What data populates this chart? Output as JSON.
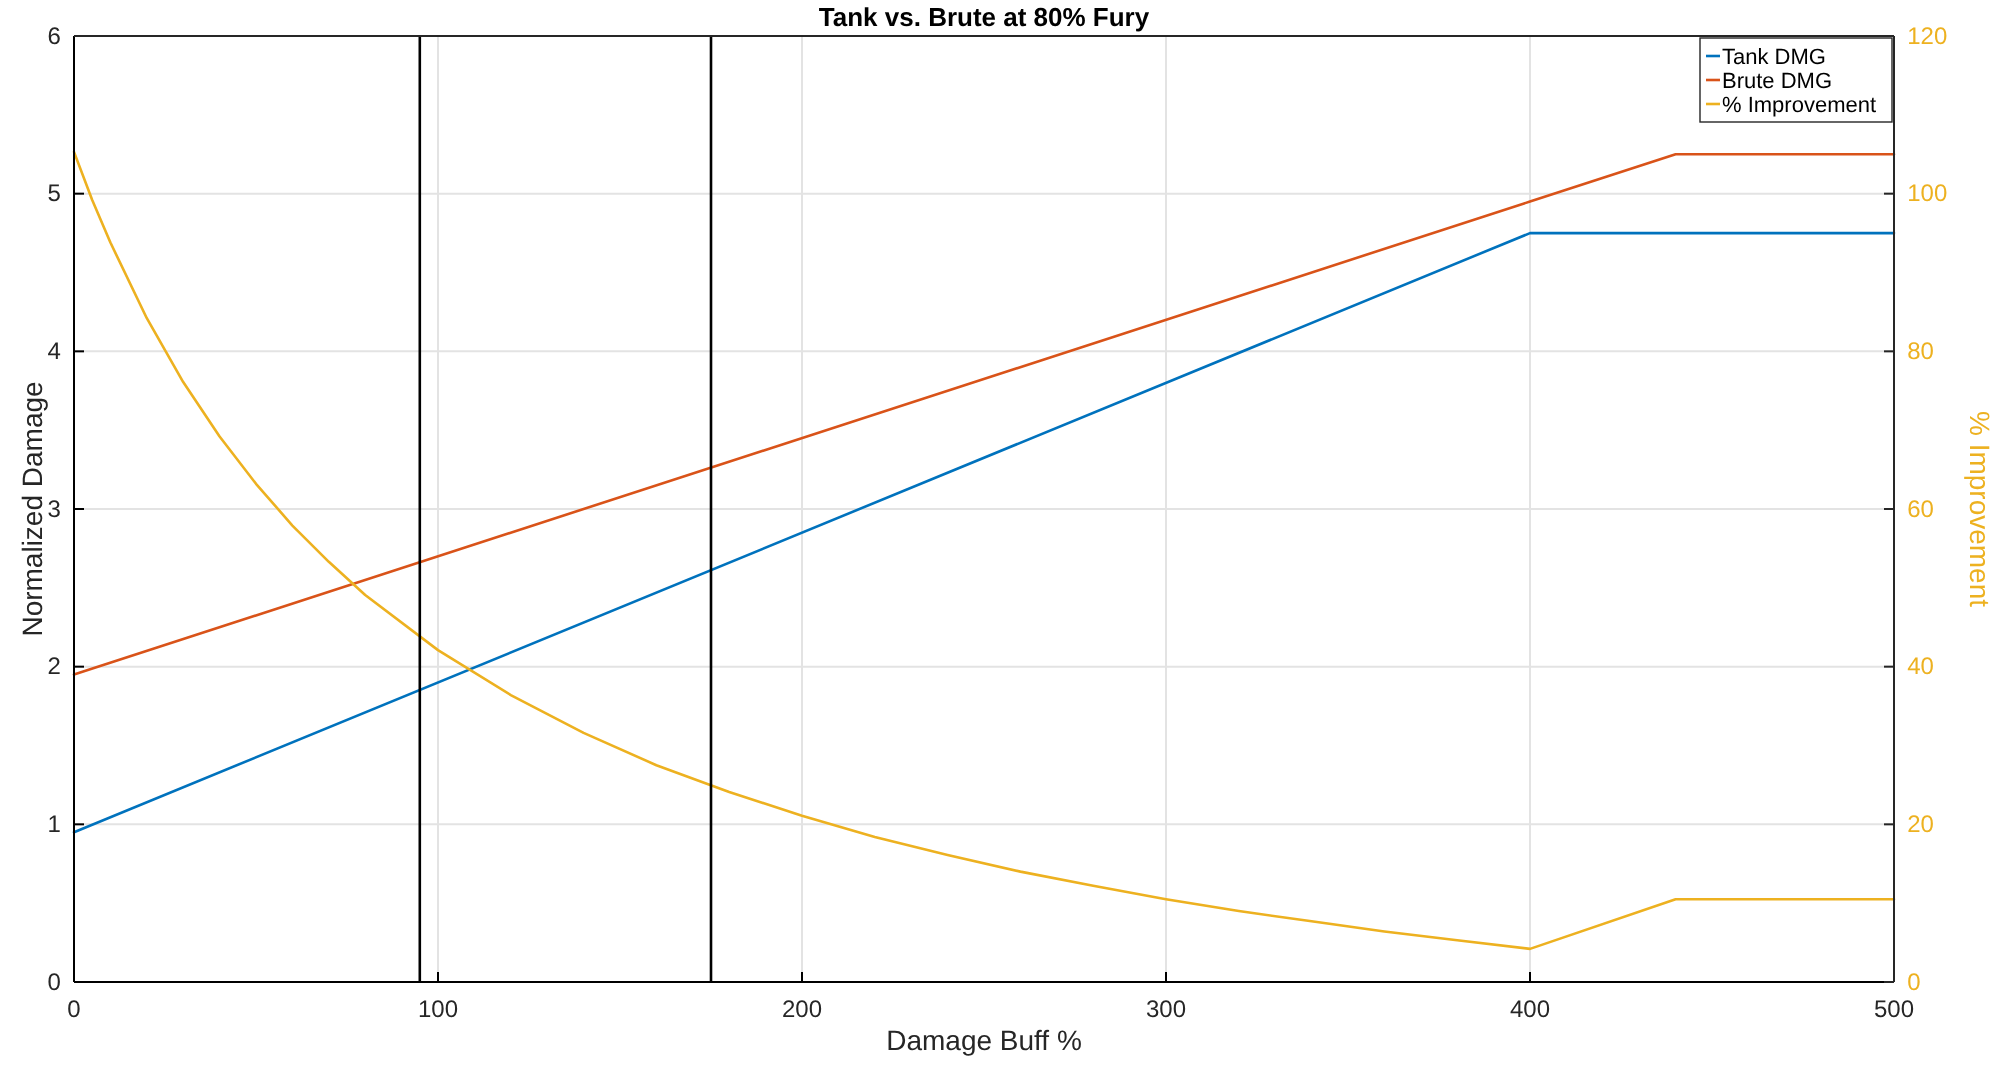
{
  "chart_data": {
    "type": "line",
    "title": "Tank vs. Brute at 80% Fury",
    "xlabel": "Damage Buff %",
    "ylabel": "Normalized Damage",
    "y2label": "% Improvement",
    "xlim": [
      0,
      500
    ],
    "xticks": [
      0,
      100,
      200,
      300,
      400,
      500
    ],
    "ylim": [
      0,
      6
    ],
    "yticks": [
      0,
      1,
      2,
      3,
      4,
      5,
      6
    ],
    "y2lim": [
      0,
      120
    ],
    "y2ticks": [
      0,
      20,
      40,
      60,
      80,
      100,
      120
    ],
    "grid": true,
    "legend": "top right",
    "line_style": "solid",
    "marker": "none",
    "series": [
      {
        "name": "Tank DMG",
        "color": "#0072bd",
        "x": [
          0,
          400,
          440,
          500
        ],
        "values": [
          0.95,
          4.75,
          4.75,
          4.75
        ]
      },
      {
        "name": "Brute DMG",
        "color": "#d95319",
        "x": [
          0,
          400,
          440,
          500
        ],
        "values": [
          1.95,
          4.95,
          5.25,
          5.25
        ]
      },
      {
        "name": "% Improvement",
        "color": "#edb120",
        "axis": "y2",
        "x": [
          0,
          5,
          10,
          20,
          30,
          40,
          50,
          60,
          70,
          80,
          100,
          120,
          140,
          160,
          180,
          200,
          220,
          240,
          260,
          280,
          300,
          320,
          340,
          360,
          380,
          400,
          440,
          500
        ],
        "values": [
          105.3,
          99.2,
          93.8,
          84.2,
          76.1,
          69.2,
          63.2,
          57.9,
          53.3,
          49.1,
          42.1,
          36.4,
          31.6,
          27.5,
          24.1,
          21.1,
          18.4,
          16.1,
          14.0,
          12.2,
          10.5,
          9.0,
          7.7,
          6.4,
          5.3,
          4.2,
          10.5,
          10.5
        ]
      }
    ],
    "ref_lines": [
      {
        "axis": "x",
        "value": 95,
        "color": "#000000"
      },
      {
        "axis": "x",
        "value": 175,
        "color": "#000000"
      }
    ]
  }
}
